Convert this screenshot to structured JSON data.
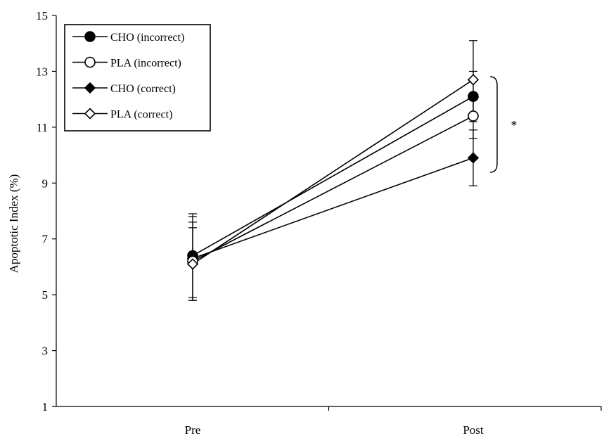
{
  "chart_data": {
    "type": "line",
    "ylabel": "Apoptotic Index (%)",
    "xlabel": "",
    "categories": [
      "Pre",
      "Post"
    ],
    "ylim": [
      1,
      15
    ],
    "yticks": [
      1,
      3,
      5,
      7,
      9,
      11,
      13,
      15
    ],
    "grid": false,
    "legend_position": "top-left",
    "significance_label": "*",
    "series": [
      {
        "name": "CHO (incorrect)",
        "marker": "circle-filled",
        "values": [
          6.4,
          12.1
        ],
        "errors": [
          1.5,
          0.9
        ]
      },
      {
        "name": "PLA (incorrect)",
        "marker": "circle-open",
        "values": [
          6.2,
          11.4
        ],
        "errors": [
          1.4,
          0.8
        ]
      },
      {
        "name": "CHO (correct)",
        "marker": "diamond-filled",
        "values": [
          6.3,
          9.9
        ],
        "errors": [
          1.5,
          1.0
        ]
      },
      {
        "name": "PLA (correct)",
        "marker": "diamond-open",
        "values": [
          6.1,
          12.7
        ],
        "errors": [
          1.3,
          1.4
        ]
      }
    ]
  }
}
